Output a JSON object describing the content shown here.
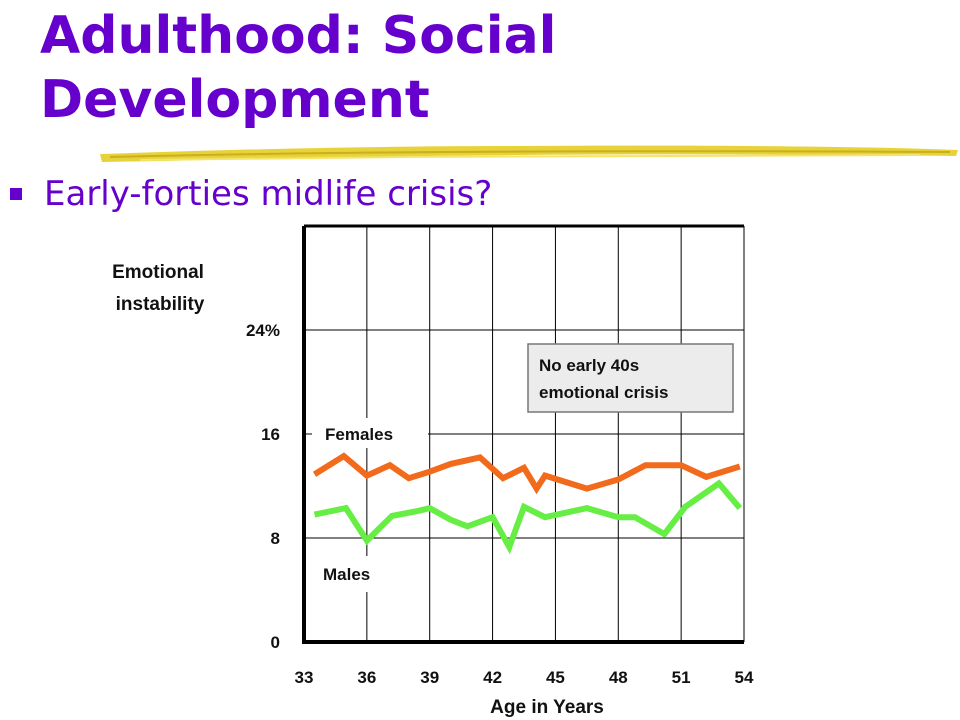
{
  "slide": {
    "title_line1": "Adulthood: Social",
    "title_line2": "Development",
    "bullet": "Early-forties midlife crisis?"
  },
  "colors": {
    "title": "#6600cc",
    "females_line": "#f26a1b",
    "males_line": "#66ee44",
    "underline": "#e8d23a"
  },
  "icons": {
    "bullet": "square-bullet-icon"
  },
  "chart_data": {
    "type": "line",
    "ylabel_line1": "Emotional",
    "ylabel_line2": "instability",
    "xlabel": "Age in Years",
    "y_ticks": [
      "24%",
      "16",
      "8",
      "0"
    ],
    "y_tick_values": [
      24,
      16,
      8,
      0
    ],
    "x_ticks": [
      "33",
      "36",
      "39",
      "42",
      "45",
      "48",
      "51",
      "54"
    ],
    "x_tick_values": [
      33,
      36,
      39,
      42,
      45,
      48,
      51,
      54
    ],
    "xlim": [
      33,
      54
    ],
    "ylim": [
      0,
      32
    ],
    "grid": true,
    "annotation_line1": "No early 40s",
    "annotation_line2": "emotional crisis",
    "series": [
      {
        "name": "Females",
        "x": [
          33.5,
          34.9,
          36,
          37.1,
          38,
          39,
          40,
          41.4,
          42.5,
          43.5,
          44.1,
          44.5,
          46.5,
          48,
          49.3,
          51,
          52.2,
          53.8
        ],
        "y": [
          12.9,
          14.3,
          12.8,
          13.6,
          12.6,
          13.1,
          13.7,
          14.2,
          12.6,
          13.4,
          11.8,
          12.8,
          11.8,
          12.5,
          13.6,
          13.6,
          12.7,
          13.5
        ]
      },
      {
        "name": "Males",
        "x": [
          33.5,
          35,
          36,
          37.2,
          38.5,
          39,
          40,
          40.8,
          42,
          42.8,
          43.5,
          44.5,
          46.5,
          48,
          48.8,
          50.2,
          51.2,
          52.8,
          53.8
        ],
        "y": [
          9.8,
          10.3,
          7.8,
          9.7,
          10.1,
          10.3,
          9.4,
          8.9,
          9.6,
          7.3,
          10.4,
          9.6,
          10.3,
          9.6,
          9.6,
          8.3,
          10.4,
          12.2,
          10.3
        ]
      }
    ]
  }
}
